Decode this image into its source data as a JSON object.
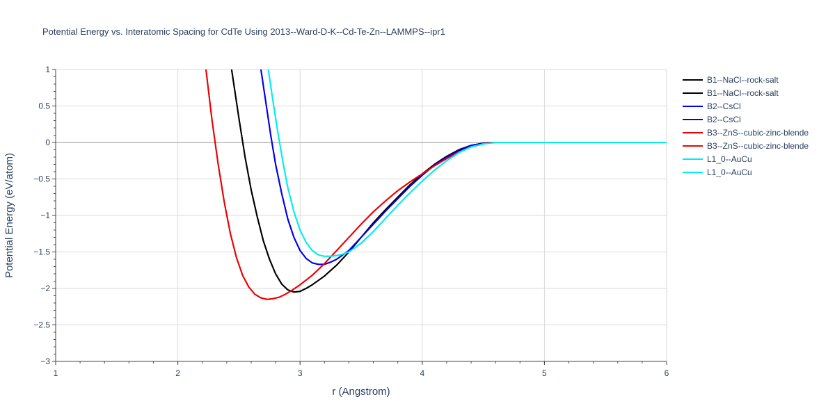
{
  "chart_data": {
    "type": "line",
    "title": "Potential Energy vs. Interatomic Spacing for CdTe Using 2013--Ward-D-K--Cd-Te-Zn--LAMMPS--ipr1",
    "xlabel": "r (Angstrom)",
    "ylabel": "Potential Energy (eV/atom)",
    "xlim": [
      1,
      6
    ],
    "ylim": [
      -3,
      1
    ],
    "x_ticks": [
      1,
      2,
      3,
      4,
      5,
      6
    ],
    "x_tick_labels": [
      "1",
      "2",
      "3",
      "4",
      "5",
      "6"
    ],
    "y_ticks": [
      1,
      0.5,
      0,
      -0.5,
      -1,
      -1.5,
      -2,
      -2.5,
      -3
    ],
    "y_tick_labels": [
      "1",
      "0.5",
      "0",
      "−0.5",
      "−1",
      "−1.5",
      "−2",
      "−2.5",
      "−3"
    ],
    "grid": true,
    "legend_position": "top-right-outside",
    "series": [
      {
        "name": "B1--NaCl--rock-salt",
        "color": "#000000",
        "x": [
          2.44,
          2.5,
          2.55,
          2.6,
          2.65,
          2.7,
          2.75,
          2.8,
          2.85,
          2.9,
          2.95,
          3.0,
          3.05,
          3.1,
          3.2,
          3.3,
          3.4,
          3.5,
          3.6,
          3.7,
          3.8,
          3.9,
          4.0,
          4.1,
          4.2,
          4.3,
          4.4,
          4.5,
          4.55,
          4.6,
          4.7,
          4.8,
          5.0,
          5.5,
          6.0
        ],
        "y": [
          1.0,
          0.33,
          -0.2,
          -0.65,
          -1.02,
          -1.35,
          -1.6,
          -1.8,
          -1.94,
          -2.02,
          -2.05,
          -2.04,
          -2.0,
          -1.95,
          -1.83,
          -1.68,
          -1.5,
          -1.3,
          -1.1,
          -0.92,
          -0.75,
          -0.58,
          -0.43,
          -0.3,
          -0.19,
          -0.1,
          -0.04,
          -0.01,
          0.0,
          0.0,
          0.0,
          0.0,
          0.0,
          0.0,
          0.0
        ]
      },
      {
        "name": "B1--NaCl--rock-salt",
        "color": "#000000",
        "x": [
          2.44,
          2.5,
          2.55,
          2.6,
          2.65,
          2.7,
          2.75,
          2.8,
          2.85,
          2.9,
          2.95,
          3.0,
          3.05,
          3.1,
          3.2,
          3.3,
          3.4,
          3.5,
          3.6,
          3.7,
          3.8,
          3.9,
          4.0,
          4.1,
          4.2,
          4.3,
          4.4,
          4.5,
          4.55,
          4.6,
          4.7,
          4.8,
          5.0,
          5.5,
          6.0
        ],
        "y": [
          1.0,
          0.33,
          -0.2,
          -0.65,
          -1.02,
          -1.35,
          -1.6,
          -1.8,
          -1.94,
          -2.02,
          -2.05,
          -2.04,
          -2.0,
          -1.95,
          -1.83,
          -1.68,
          -1.5,
          -1.3,
          -1.1,
          -0.92,
          -0.75,
          -0.58,
          -0.43,
          -0.3,
          -0.19,
          -0.1,
          -0.04,
          -0.01,
          0.0,
          0.0,
          0.0,
          0.0,
          0.0,
          0.0,
          0.0
        ]
      },
      {
        "name": "B2--CsCl",
        "color": "#0000ee",
        "x": [
          2.68,
          2.72,
          2.76,
          2.8,
          2.85,
          2.9,
          2.95,
          3.0,
          3.05,
          3.1,
          3.15,
          3.2,
          3.25,
          3.3,
          3.4,
          3.5,
          3.6,
          3.7,
          3.8,
          3.9,
          4.0,
          4.1,
          4.2,
          4.3,
          4.4,
          4.5,
          4.6,
          4.7,
          5.0,
          5.5,
          6.0
        ],
        "y": [
          1.0,
          0.55,
          0.1,
          -0.3,
          -0.7,
          -1.05,
          -1.3,
          -1.48,
          -1.59,
          -1.65,
          -1.67,
          -1.67,
          -1.64,
          -1.6,
          -1.48,
          -1.3,
          -1.12,
          -0.94,
          -0.77,
          -0.6,
          -0.45,
          -0.31,
          -0.2,
          -0.11,
          -0.04,
          -0.01,
          0.0,
          0.0,
          0.0,
          0.0,
          0.0
        ]
      },
      {
        "name": "B2--CsCl",
        "color": "#0000ee",
        "x": [
          2.68,
          2.72,
          2.76,
          2.8,
          2.85,
          2.9,
          2.95,
          3.0,
          3.05,
          3.1,
          3.15,
          3.2,
          3.25,
          3.3,
          3.4,
          3.5,
          3.6,
          3.7,
          3.8,
          3.9,
          4.0,
          4.1,
          4.2,
          4.3,
          4.4,
          4.5,
          4.6,
          4.7,
          5.0,
          5.5,
          6.0
        ],
        "y": [
          1.0,
          0.55,
          0.1,
          -0.3,
          -0.7,
          -1.05,
          -1.3,
          -1.48,
          -1.59,
          -1.65,
          -1.67,
          -1.67,
          -1.64,
          -1.6,
          -1.48,
          -1.3,
          -1.12,
          -0.94,
          -0.77,
          -0.6,
          -0.45,
          -0.31,
          -0.2,
          -0.11,
          -0.04,
          -0.01,
          0.0,
          0.0,
          0.0,
          0.0,
          0.0
        ]
      },
      {
        "name": "B3--ZnS--cubic-zinc-blende",
        "color": "#ee0000",
        "x": [
          2.23,
          2.28,
          2.33,
          2.38,
          2.43,
          2.48,
          2.53,
          2.58,
          2.63,
          2.68,
          2.73,
          2.78,
          2.83,
          2.88,
          2.93,
          3.0,
          3.1,
          3.2,
          3.3,
          3.4,
          3.5,
          3.6,
          3.7,
          3.8,
          3.9,
          4.0,
          4.1,
          4.2,
          4.3,
          4.4,
          4.5,
          4.55,
          4.6,
          4.7,
          5.0,
          5.5,
          6.0
        ],
        "y": [
          1.0,
          0.3,
          -0.3,
          -0.82,
          -1.25,
          -1.58,
          -1.82,
          -1.98,
          -2.08,
          -2.13,
          -2.15,
          -2.14,
          -2.12,
          -2.08,
          -2.03,
          -1.95,
          -1.82,
          -1.66,
          -1.48,
          -1.3,
          -1.12,
          -0.95,
          -0.8,
          -0.66,
          -0.54,
          -0.43,
          -0.32,
          -0.22,
          -0.13,
          -0.06,
          -0.02,
          0.0,
          0.0,
          0.0,
          0.0,
          0.0,
          0.0
        ]
      },
      {
        "name": "B3--ZnS--cubic-zinc-blende",
        "color": "#ee0000",
        "x": [
          2.23,
          2.28,
          2.33,
          2.38,
          2.43,
          2.48,
          2.53,
          2.58,
          2.63,
          2.68,
          2.73,
          2.78,
          2.83,
          2.88,
          2.93,
          3.0,
          3.1,
          3.2,
          3.3,
          3.4,
          3.5,
          3.6,
          3.7,
          3.8,
          3.9,
          4.0,
          4.1,
          4.2,
          4.3,
          4.4,
          4.5,
          4.55,
          4.6,
          4.7,
          5.0,
          5.5,
          6.0
        ],
        "y": [
          1.0,
          0.3,
          -0.3,
          -0.82,
          -1.25,
          -1.58,
          -1.82,
          -1.98,
          -2.08,
          -2.13,
          -2.15,
          -2.14,
          -2.12,
          -2.08,
          -2.03,
          -1.95,
          -1.82,
          -1.66,
          -1.48,
          -1.3,
          -1.12,
          -0.95,
          -0.8,
          -0.66,
          -0.54,
          -0.43,
          -0.32,
          -0.22,
          -0.13,
          -0.06,
          -0.02,
          0.0,
          0.0,
          0.0,
          0.0,
          0.0,
          0.0
        ]
      },
      {
        "name": "L1_0--AuCu",
        "color": "#00eeee",
        "x": [
          2.74,
          2.78,
          2.82,
          2.86,
          2.9,
          2.95,
          3.0,
          3.05,
          3.1,
          3.15,
          3.2,
          3.25,
          3.3,
          3.35,
          3.4,
          3.5,
          3.6,
          3.7,
          3.8,
          3.9,
          4.0,
          4.1,
          4.2,
          4.3,
          4.4,
          4.5,
          4.6,
          4.7,
          5.0,
          5.5,
          6.0
        ],
        "y": [
          1.0,
          0.55,
          0.12,
          -0.27,
          -0.62,
          -0.95,
          -1.2,
          -1.37,
          -1.48,
          -1.54,
          -1.56,
          -1.56,
          -1.55,
          -1.53,
          -1.5,
          -1.38,
          -1.22,
          -1.04,
          -0.86,
          -0.69,
          -0.53,
          -0.38,
          -0.25,
          -0.14,
          -0.06,
          -0.02,
          0.0,
          0.0,
          0.0,
          0.0,
          0.0
        ]
      },
      {
        "name": "L1_0--AuCu",
        "color": "#00eeee",
        "x": [
          2.74,
          2.78,
          2.82,
          2.86,
          2.9,
          2.95,
          3.0,
          3.05,
          3.1,
          3.15,
          3.2,
          3.25,
          3.3,
          3.35,
          3.4,
          3.5,
          3.6,
          3.7,
          3.8,
          3.9,
          4.0,
          4.1,
          4.2,
          4.3,
          4.4,
          4.5,
          4.6,
          4.7,
          5.0,
          5.5,
          6.0
        ],
        "y": [
          1.0,
          0.55,
          0.12,
          -0.27,
          -0.62,
          -0.95,
          -1.2,
          -1.37,
          -1.48,
          -1.54,
          -1.56,
          -1.56,
          -1.55,
          -1.53,
          -1.5,
          -1.38,
          -1.22,
          -1.04,
          -0.86,
          -0.69,
          -0.53,
          -0.38,
          -0.25,
          -0.14,
          -0.06,
          -0.02,
          0.0,
          0.0,
          0.0,
          0.0,
          0.0
        ]
      }
    ]
  }
}
